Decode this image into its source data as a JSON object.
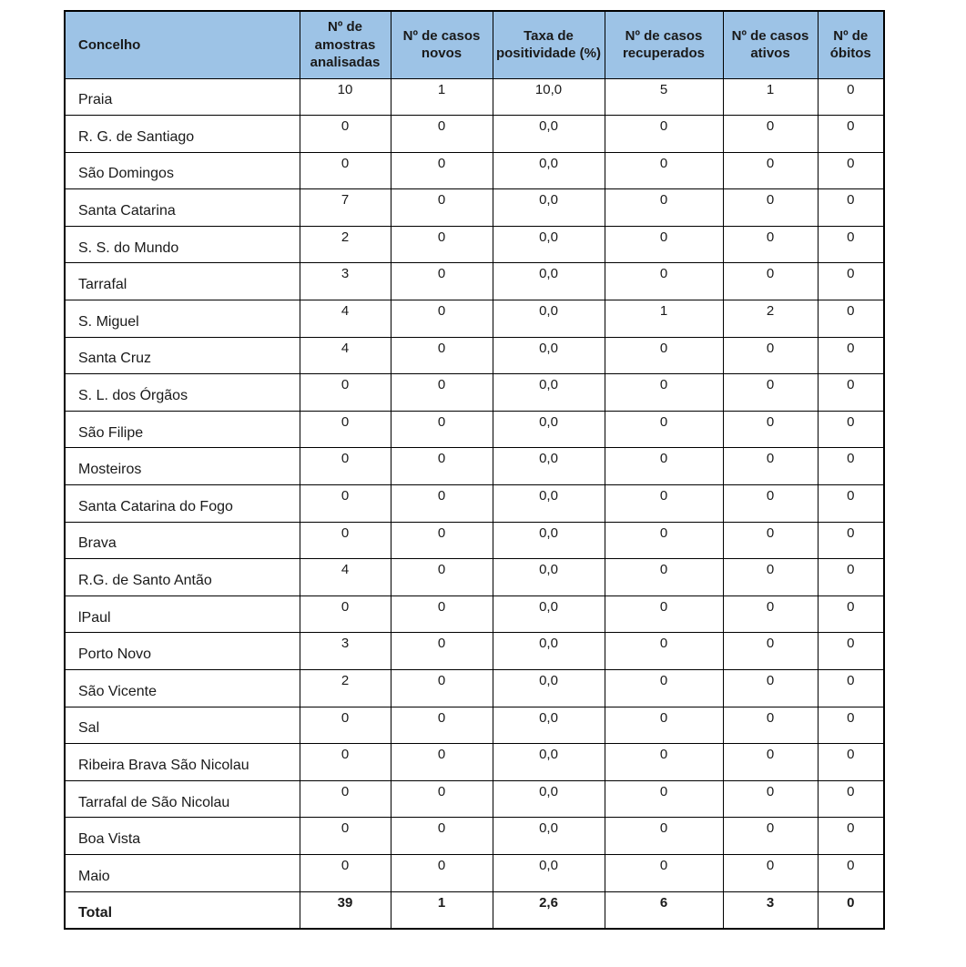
{
  "table": {
    "columns": [
      "Concelho",
      "Nº de amostras analisadas",
      "Nº de casos novos",
      "Taxa de positividade (%)",
      "Nº de casos recuperados",
      "Nº de casos ativos",
      "Nº de óbitos"
    ],
    "rows": [
      {
        "name": "Praia",
        "values": [
          "10",
          "1",
          "10,0",
          "5",
          "1",
          "0"
        ]
      },
      {
        "name": "R. G. de Santiago",
        "values": [
          "0",
          "0",
          "0,0",
          "0",
          "0",
          "0"
        ]
      },
      {
        "name": "São Domingos",
        "values": [
          "0",
          "0",
          "0,0",
          "0",
          "0",
          "0"
        ]
      },
      {
        "name": "Santa Catarina",
        "values": [
          "7",
          "0",
          "0,0",
          "0",
          "0",
          "0"
        ]
      },
      {
        "name": "S. S. do Mundo",
        "values": [
          "2",
          "0",
          "0,0",
          "0",
          "0",
          "0"
        ]
      },
      {
        "name": "Tarrafal",
        "values": [
          "3",
          "0",
          "0,0",
          "0",
          "0",
          "0"
        ]
      },
      {
        "name": "S. Miguel",
        "values": [
          "4",
          "0",
          "0,0",
          "1",
          "2",
          "0"
        ]
      },
      {
        "name": "Santa Cruz",
        "values": [
          "4",
          "0",
          "0,0",
          "0",
          "0",
          "0"
        ]
      },
      {
        "name": "S. L. dos Órgãos",
        "values": [
          "0",
          "0",
          "0,0",
          "0",
          "0",
          "0"
        ]
      },
      {
        "name": "São Filipe",
        "values": [
          "0",
          "0",
          "0,0",
          "0",
          "0",
          "0"
        ]
      },
      {
        "name": "Mosteiros",
        "values": [
          "0",
          "0",
          "0,0",
          "0",
          "0",
          "0"
        ]
      },
      {
        "name": "Santa Catarina do Fogo",
        "values": [
          "0",
          "0",
          "0,0",
          "0",
          "0",
          "0"
        ]
      },
      {
        "name": "Brava",
        "values": [
          "0",
          "0",
          "0,0",
          "0",
          "0",
          "0"
        ]
      },
      {
        "name": "R.G. de Santo Antão",
        "values": [
          "4",
          "0",
          "0,0",
          "0",
          "0",
          "0"
        ]
      },
      {
        "name": "lPaul",
        "values": [
          "0",
          "0",
          "0,0",
          "0",
          "0",
          "0"
        ]
      },
      {
        "name": "Porto Novo",
        "values": [
          "3",
          "0",
          "0,0",
          "0",
          "0",
          "0"
        ]
      },
      {
        "name": "São Vicente",
        "values": [
          "2",
          "0",
          "0,0",
          "0",
          "0",
          "0"
        ]
      },
      {
        "name": "Sal",
        "values": [
          "0",
          "0",
          "0,0",
          "0",
          "0",
          "0"
        ]
      },
      {
        "name": "Ribeira Brava São Nicolau",
        "values": [
          "0",
          "0",
          "0,0",
          "0",
          "0",
          "0"
        ]
      },
      {
        "name": "Tarrafal de São Nicolau",
        "values": [
          "0",
          "0",
          "0,0",
          "0",
          "0",
          "0"
        ]
      },
      {
        "name": "Boa Vista",
        "values": [
          "0",
          "0",
          "0,0",
          "0",
          "0",
          "0"
        ]
      },
      {
        "name": "Maio",
        "values": [
          "0",
          "0",
          "0,0",
          "0",
          "0",
          "0"
        ]
      }
    ],
    "total_row": {
      "name": "Total",
      "values": [
        "39",
        "1",
        "2,6",
        "6",
        "3",
        "0"
      ]
    },
    "colors": {
      "header_bg": "#9DC3E6",
      "border": "#000000",
      "text": "#1a1a1a"
    }
  }
}
